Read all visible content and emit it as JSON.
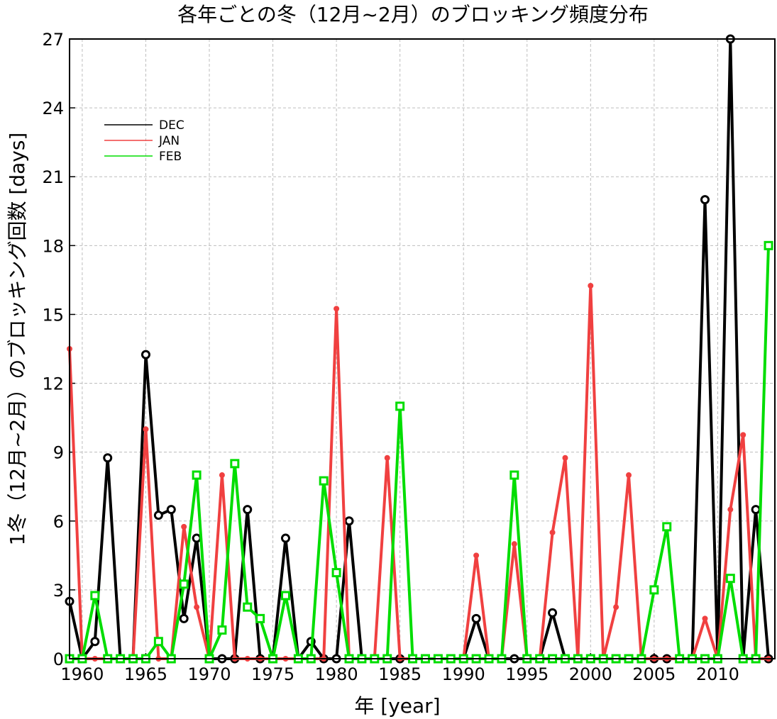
{
  "chart_data": {
    "type": "line",
    "title": "各年ごとの冬（12月~2月）のブロッキング頻度分布",
    "xlabel": "年 [year]",
    "ylabel": "1冬（12月~2月）のブロッキング回数 [days]",
    "xlim": [
      1959,
      2014.5
    ],
    "ylim": [
      0,
      27
    ],
    "x_ticks": [
      "1960",
      "1965",
      "1970",
      "1975",
      "1980",
      "1985",
      "1990",
      "1995",
      "2000",
      "2005",
      "2010"
    ],
    "y_ticks": [
      "0",
      "3",
      "6",
      "9",
      "12",
      "15",
      "18",
      "21",
      "24",
      "27"
    ],
    "grid": true,
    "legend_position": "top-left",
    "x": [
      1959,
      1960,
      1961,
      1962,
      1963,
      1964,
      1965,
      1966,
      1967,
      1968,
      1969,
      1970,
      1971,
      1972,
      1973,
      1974,
      1975,
      1976,
      1977,
      1978,
      1979,
      1980,
      1981,
      1982,
      1983,
      1984,
      1985,
      1986,
      1987,
      1988,
      1989,
      1990,
      1991,
      1992,
      1993,
      1994,
      1995,
      1996,
      1997,
      1998,
      1999,
      2000,
      2001,
      2002,
      2003,
      2004,
      2005,
      2006,
      2007,
      2008,
      2009,
      2010,
      2011,
      2012,
      2013,
      2014
    ],
    "series": [
      {
        "name": "DEC",
        "color": "#000000",
        "marker": "circle",
        "values": [
          2.5,
          0,
          0.75,
          8.75,
          0,
          0,
          13.25,
          6.25,
          6.5,
          1.75,
          5.25,
          0,
          0,
          0,
          6.5,
          0,
          0,
          5.25,
          0,
          0.75,
          0,
          0,
          6,
          0,
          0,
          0,
          0,
          0,
          0,
          0,
          0,
          0,
          1.75,
          0,
          0,
          0,
          0,
          0,
          2,
          0,
          0,
          0,
          0,
          0,
          0,
          0,
          0,
          0,
          0,
          0,
          20,
          0,
          27,
          0,
          6.5,
          0
        ]
      },
      {
        "name": "JAN",
        "color": "#f04040",
        "marker": "dot",
        "values": [
          13.5,
          0,
          0,
          0,
          0,
          0,
          10,
          0,
          0,
          5.75,
          2.25,
          0,
          8,
          0,
          0,
          0,
          0,
          0,
          0,
          0,
          0,
          15.25,
          0,
          0,
          0,
          8.75,
          0,
          0,
          0,
          0,
          0,
          0,
          4.5,
          0,
          0,
          5,
          0,
          0,
          5.5,
          8.75,
          0,
          16.25,
          0,
          2.25,
          8,
          0,
          0,
          0,
          0,
          0,
          1.75,
          0,
          6.5,
          9.75,
          0,
          0
        ]
      },
      {
        "name": "FEB",
        "color": "#00dd00",
        "marker": "square",
        "values": [
          0,
          0,
          2.75,
          0,
          0,
          0,
          0,
          0.75,
          0,
          3.25,
          8,
          0,
          1.25,
          8.5,
          2.25,
          1.75,
          0,
          2.75,
          0,
          0,
          7.75,
          3.75,
          0,
          0,
          0,
          0,
          11,
          0,
          0,
          0,
          0,
          0,
          0,
          0,
          0,
          8,
          0,
          0,
          0,
          0,
          0,
          0,
          0,
          0,
          0,
          0,
          3,
          5.75,
          0,
          0,
          0,
          0,
          3.5,
          0,
          0,
          18
        ]
      }
    ]
  }
}
